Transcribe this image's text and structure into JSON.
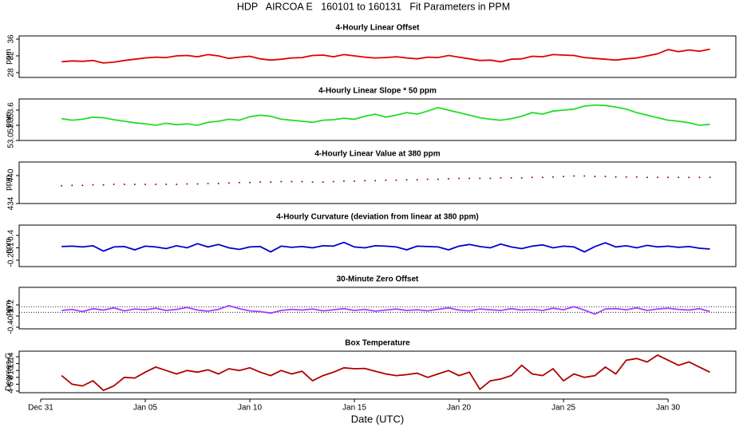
{
  "title": "HDP   AIRCOA E   160101 to 160131   Fit Parameters in PPM",
  "chart_data": [
    {
      "type": "line",
      "title": "4-Hourly Linear Offset",
      "ylabel": "ppm",
      "color": "#e00000",
      "xlim": [
        -1.03,
        33.24
      ],
      "ylim": [
        26.86,
        36.76
      ],
      "yticks": [
        28,
        32,
        36
      ],
      "x": [
        1,
        1.5,
        2,
        2.5,
        3,
        3.5,
        4,
        4.5,
        5,
        5.5,
        6,
        6.5,
        7,
        7.5,
        8,
        8.5,
        9,
        9.5,
        10,
        10.5,
        11,
        11.5,
        12,
        12.5,
        13,
        13.5,
        14,
        14.5,
        15,
        15.5,
        16,
        16.5,
        17,
        17.5,
        18,
        18.5,
        19,
        19.5,
        20,
        20.5,
        21,
        21.5,
        22,
        22.5,
        23,
        23.5,
        24,
        24.5,
        25,
        25.5,
        26,
        26.5,
        27,
        27.5,
        28,
        28.5,
        29,
        29.5,
        30,
        30.5,
        31,
        31.5,
        32
      ],
      "values": [
        30.6,
        30.8,
        30.7,
        30.9,
        30.3,
        30.5,
        30.9,
        31.2,
        31.5,
        31.7,
        31.6,
        32.0,
        32.1,
        31.8,
        32.3,
        32.0,
        31.4,
        31.7,
        31.9,
        31.3,
        31.0,
        31.2,
        31.5,
        31.6,
        32.1,
        32.2,
        31.8,
        32.3,
        32.0,
        31.7,
        31.5,
        31.6,
        31.8,
        31.5,
        31.3,
        31.7,
        31.6,
        32.1,
        31.7,
        31.3,
        30.9,
        31.0,
        30.6,
        31.2,
        31.3,
        31.9,
        31.8,
        32.3,
        32.2,
        32.1,
        31.6,
        31.4,
        31.2,
        31.0,
        31.3,
        31.5,
        32.0,
        32.5,
        33.5,
        33.0,
        33.4,
        33.1,
        33.6
      ]
    },
    {
      "type": "line",
      "title": "4-Hourly Linear Slope * 50 ppm",
      "ylabel": "ppm",
      "color": "#22dd22",
      "xlim": [
        -1.03,
        33.24
      ],
      "ylim": [
        53.0,
        53.82
      ],
      "yticks": [
        {
          "value": 53,
          "label": "53.0"
        },
        53.3,
        53.6
      ],
      "x": [
        1,
        1.5,
        2,
        2.5,
        3,
        3.5,
        4,
        4.5,
        5,
        5.5,
        6,
        6.5,
        7,
        7.5,
        8,
        8.5,
        9,
        9.5,
        10,
        10.5,
        11,
        11.5,
        12,
        12.5,
        13,
        13.5,
        14,
        14.5,
        15,
        15.5,
        16,
        16.5,
        17,
        17.5,
        18,
        18.5,
        19,
        19.5,
        20,
        20.5,
        21,
        21.5,
        22,
        22.5,
        23,
        23.5,
        24,
        24.5,
        25,
        25.5,
        26,
        26.5,
        27,
        27.5,
        28,
        28.5,
        29,
        29.5,
        30,
        30.5,
        31,
        31.5,
        32
      ],
      "values": [
        53.43,
        53.4,
        53.42,
        53.46,
        53.45,
        53.41,
        53.38,
        53.35,
        53.33,
        53.3,
        53.34,
        53.31,
        53.33,
        53.3,
        53.36,
        53.38,
        53.42,
        53.4,
        53.47,
        53.5,
        53.48,
        53.42,
        53.4,
        53.38,
        53.36,
        53.4,
        53.41,
        53.44,
        53.42,
        53.48,
        53.52,
        53.46,
        53.5,
        53.55,
        53.52,
        53.58,
        53.65,
        53.6,
        53.55,
        53.5,
        53.45,
        53.42,
        53.4,
        53.43,
        53.48,
        53.55,
        53.52,
        53.58,
        53.6,
        53.62,
        53.68,
        53.7,
        53.69,
        53.66,
        53.62,
        53.55,
        53.5,
        53.45,
        53.4,
        53.38,
        53.35,
        53.3,
        53.32
      ]
    },
    {
      "type": "scatter",
      "title": "4-Hourly Linear Value at 380 ppm",
      "ylabel": "ppm",
      "color": "#8b1010",
      "xlim": [
        -1.03,
        33.24
      ],
      "ylim": [
        434,
        442.9
      ],
      "yticks": [
        434,
        440
      ],
      "x": [
        1,
        1.5,
        2,
        2.5,
        3,
        3.5,
        4,
        4.5,
        5,
        5.5,
        6,
        6.5,
        7,
        7.5,
        8,
        8.5,
        9,
        9.5,
        10,
        10.5,
        11,
        11.5,
        12,
        12.5,
        13,
        13.5,
        14,
        14.5,
        15,
        15.5,
        16,
        16.5,
        17,
        17.5,
        18,
        18.5,
        19,
        19.5,
        20,
        20.5,
        21,
        21.5,
        22,
        22.5,
        23,
        23.5,
        24,
        24.5,
        25,
        25.5,
        26,
        26.5,
        27,
        27.5,
        28,
        28.5,
        29,
        29.5,
        30,
        30.5,
        31,
        31.5,
        32
      ],
      "values": [
        437.8,
        437.9,
        437.9,
        438.0,
        438.0,
        438.1,
        438.1,
        438.1,
        438.1,
        438.1,
        438.1,
        438.1,
        438.2,
        438.2,
        438.3,
        438.3,
        438.4,
        438.5,
        438.5,
        438.6,
        438.6,
        438.7,
        438.7,
        438.7,
        438.6,
        438.6,
        438.7,
        438.8,
        438.8,
        438.9,
        438.9,
        439.0,
        439.0,
        439.1,
        439.1,
        439.2,
        439.2,
        439.3,
        439.4,
        439.4,
        439.4,
        439.4,
        439.5,
        439.5,
        439.5,
        439.6,
        439.6,
        439.7,
        439.8,
        439.9,
        439.9,
        439.8,
        439.8,
        439.7,
        439.7,
        439.7,
        439.6,
        439.6,
        439.6,
        439.6,
        439.6,
        439.6,
        439.6
      ]
    },
    {
      "type": "line",
      "title": "4-Hourly Curvature (deviation from linear at 380 ppm)",
      "ylabel": "ppm",
      "color": "#0000cc",
      "xlim": [
        -1.03,
        33.24
      ],
      "ylim": [
        -0.355,
        0.65
      ],
      "yticks": [
        -0.2,
        0.1,
        0.4
      ],
      "x": [
        1,
        1.5,
        2,
        2.5,
        3,
        3.5,
        4,
        4.5,
        5,
        5.5,
        6,
        6.5,
        7,
        7.5,
        8,
        8.5,
        9,
        9.5,
        10,
        10.5,
        11,
        11.5,
        12,
        12.5,
        13,
        13.5,
        14,
        14.5,
        15,
        15.5,
        16,
        16.5,
        17,
        17.5,
        18,
        18.5,
        19,
        19.5,
        20,
        20.5,
        21,
        21.5,
        22,
        22.5,
        23,
        23.5,
        24,
        24.5,
        25,
        25.5,
        26,
        26.5,
        27,
        27.5,
        28,
        28.5,
        29,
        29.5,
        30,
        30.5,
        31,
        31.5,
        32
      ],
      "values": [
        0.13,
        0.14,
        0.12,
        0.15,
        0.02,
        0.12,
        0.13,
        0.05,
        0.14,
        0.12,
        0.08,
        0.15,
        0.1,
        0.2,
        0.12,
        0.18,
        0.1,
        0.06,
        0.12,
        0.13,
        0.0,
        0.14,
        0.11,
        0.13,
        0.1,
        0.15,
        0.14,
        0.23,
        0.12,
        0.1,
        0.15,
        0.14,
        0.12,
        0.05,
        0.14,
        0.13,
        0.12,
        0.05,
        0.14,
        0.18,
        0.13,
        0.1,
        0.19,
        0.12,
        0.08,
        0.14,
        0.17,
        0.1,
        0.14,
        0.12,
        0.0,
        0.13,
        0.22,
        0.12,
        0.15,
        0.1,
        0.16,
        0.12,
        0.14,
        0.11,
        0.13,
        0.09,
        0.07
      ]
    },
    {
      "type": "line",
      "title": "30-Minute Zero Offset",
      "ylabel": "ppm",
      "color": "#a040ff",
      "xlim": [
        -1.03,
        33.24
      ],
      "ylim": [
        -0.443,
        0.671
      ],
      "yticks": [
        -0.4,
        -0.1,
        0.2
      ],
      "hlines": [
        0,
        0.15
      ],
      "x": [
        1,
        1.5,
        2,
        2.5,
        3,
        3.5,
        4,
        4.5,
        5,
        5.5,
        6,
        6.5,
        7,
        7.5,
        8,
        8.5,
        9,
        9.5,
        10,
        10.5,
        11,
        11.5,
        12,
        12.5,
        13,
        13.5,
        14,
        14.5,
        15,
        15.5,
        16,
        16.5,
        17,
        17.5,
        18,
        18.5,
        19,
        19.5,
        20,
        20.5,
        21,
        21.5,
        22,
        22.5,
        23,
        23.5,
        24,
        24.5,
        25,
        25.5,
        26,
        26.5,
        27,
        27.5,
        28,
        28.5,
        29,
        29.5,
        30,
        30.5,
        31,
        31.5,
        32
      ],
      "values": [
        0.05,
        0.08,
        0.02,
        0.1,
        0.06,
        0.12,
        0.04,
        0.09,
        0.07,
        0.11,
        0.05,
        0.08,
        0.13,
        0.06,
        0.03,
        0.08,
        0.18,
        0.1,
        0.04,
        0.02,
        -0.02,
        0.05,
        0.08,
        0.06,
        0.09,
        0.04,
        0.07,
        0.1,
        0.05,
        0.08,
        0.03,
        0.06,
        0.09,
        0.05,
        0.07,
        0.04,
        0.08,
        0.12,
        0.06,
        0.04,
        0.09,
        0.07,
        0.05,
        0.1,
        0.06,
        0.08,
        0.05,
        0.11,
        0.07,
        0.15,
        0.06,
        -0.05,
        0.09,
        0.1,
        0.07,
        0.12,
        0.05,
        0.09,
        0.11,
        0.08,
        0.06,
        0.1,
        0.02
      ]
    },
    {
      "type": "line",
      "title": "Box Temperature",
      "ylabel": "Degrees C",
      "color": "#b00000",
      "xlim": [
        -1.03,
        33.24
      ],
      "ylim": [
        3.53,
        15.63
      ],
      "yticks": [
        4,
        6,
        8,
        10,
        12,
        14
      ],
      "xlabel": "Date (UTC)",
      "xticks": [
        {
          "value": 0,
          "label": "Dec 31"
        },
        {
          "value": 5,
          "label": "Jan 05"
        },
        {
          "value": 10,
          "label": "Jan 10"
        },
        {
          "value": 15,
          "label": "Jan 15"
        },
        {
          "value": 20,
          "label": "Jan 20"
        },
        {
          "value": 25,
          "label": "Jan 25"
        },
        {
          "value": 30,
          "label": "Jan 30"
        }
      ],
      "x": [
        1,
        1.5,
        2,
        2.5,
        3,
        3.5,
        4,
        4.5,
        5,
        5.5,
        6,
        6.5,
        7,
        7.5,
        8,
        8.5,
        9,
        9.5,
        10,
        10.5,
        11,
        11.5,
        12,
        12.5,
        13,
        13.5,
        14,
        14.5,
        15,
        15.5,
        16,
        16.5,
        17,
        17.5,
        18,
        18.5,
        19,
        19.5,
        20,
        20.5,
        21,
        21.5,
        22,
        22.5,
        23,
        23.5,
        24,
        24.5,
        25,
        25.5,
        26,
        26.5,
        27,
        27.5,
        28,
        28.5,
        29,
        29.5,
        30,
        30.5,
        31,
        31.5,
        32
      ],
      "values": [
        8.5,
        6.0,
        5.5,
        7.0,
        4.2,
        5.5,
        8.0,
        7.8,
        9.5,
        11.0,
        10.0,
        9.0,
        10.0,
        9.5,
        10.2,
        9.0,
        10.5,
        10.0,
        10.8,
        9.5,
        8.5,
        10.0,
        9.0,
        9.8,
        7.0,
        8.5,
        9.5,
        10.8,
        10.5,
        10.6,
        9.8,
        9.0,
        8.5,
        8.8,
        9.2,
        8.0,
        9.0,
        10.0,
        8.5,
        9.5,
        4.5,
        7.0,
        7.5,
        8.5,
        11.5,
        9.0,
        8.5,
        10.5,
        7.0,
        9.0,
        8.0,
        8.5,
        11.0,
        9.0,
        13.0,
        13.5,
        12.5,
        14.5,
        13.0,
        11.5,
        12.5,
        11.0,
        9.5
      ]
    }
  ]
}
